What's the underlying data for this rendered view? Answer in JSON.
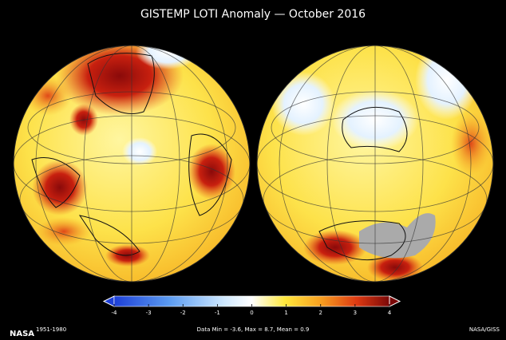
{
  "title": "GISTEMP LOTI Anomaly — October 2016",
  "colorbar": {
    "range": [
      -4,
      4
    ],
    "ticks": [
      -4,
      -3,
      -2,
      -1,
      0,
      1,
      2,
      3,
      4
    ]
  },
  "footer": {
    "base_period": "1951-1980",
    "stats": "Data Min = -3.6, Max = 8.7, Mean = 0.9",
    "credit": "NASA/GISS",
    "logo": "NASA"
  }
}
